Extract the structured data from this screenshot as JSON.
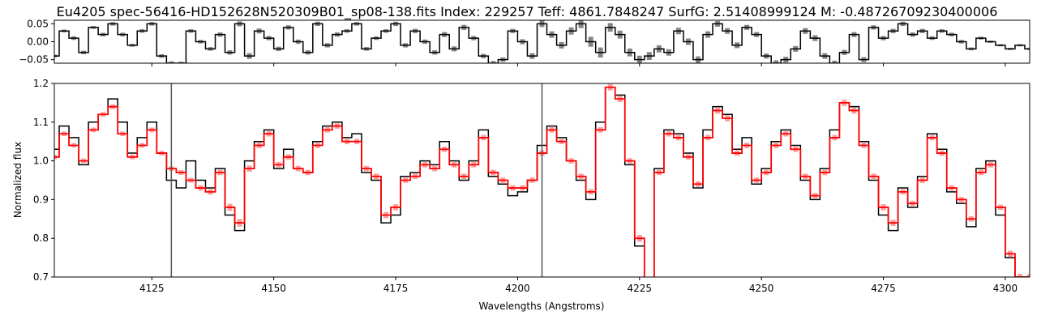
{
  "chart_data": [
    {
      "type": "line",
      "title": "Eu4205 spec-56416-HD152628N520309B01_sp08-138.fits Index: 229257 Teff: 4861.7848247 SurfG: 2.51408999124 M: -0.48726709230400006",
      "xlim": [
        4105,
        4305
      ],
      "ylim": [
        -0.06,
        0.06
      ],
      "yticks": [
        "0.05",
        "0.00",
        "−0.05"
      ],
      "yticks_values": [
        0.05,
        0.0,
        -0.05
      ],
      "xlabel": "",
      "ylabel": "",
      "grid": false,
      "series": [
        {
          "color": "#000000",
          "x": [
            4105,
            4107,
            4109,
            4111,
            4113,
            4115,
            4117,
            4119,
            4121,
            4123,
            4125,
            4127,
            4129,
            4131,
            4133,
            4135,
            4137,
            4139,
            4141,
            4143,
            4145,
            4147,
            4149,
            4151,
            4153,
            4155,
            4157,
            4159,
            4161,
            4163,
            4165,
            4167,
            4169,
            4171,
            4173,
            4175,
            4177,
            4179,
            4181,
            4183,
            4185,
            4187,
            4189,
            4191,
            4193,
            4195,
            4197,
            4199,
            4201,
            4203,
            4205,
            4207,
            4209,
            4211,
            4213,
            4215,
            4217,
            4219,
            4221,
            4223,
            4225,
            4227,
            4229,
            4231,
            4233,
            4235,
            4237,
            4239,
            4241,
            4243,
            4245,
            4247,
            4249,
            4251,
            4253,
            4255,
            4257,
            4259,
            4261,
            4263,
            4265,
            4267,
            4269,
            4271,
            4273,
            4275,
            4277,
            4279,
            4281,
            4283,
            4285,
            4287,
            4289,
            4291,
            4293,
            4295,
            4297,
            4299,
            4301,
            4303,
            4305
          ],
          "y": [
            -0.04,
            0.03,
            0.01,
            -0.03,
            0.04,
            0.02,
            0.05,
            0.02,
            -0.01,
            0.03,
            0.05,
            -0.04,
            -0.06,
            -0.06,
            0.03,
            0.0,
            -0.02,
            0.02,
            -0.03,
            0.05,
            -0.04,
            0.03,
            0.01,
            -0.02,
            0.04,
            0.0,
            -0.03,
            0.05,
            -0.01,
            0.02,
            0.03,
            0.05,
            -0.02,
            0.01,
            0.03,
            0.05,
            -0.01,
            0.03,
            0.0,
            -0.03,
            0.02,
            -0.02,
            0.04,
            0.01,
            -0.04,
            -0.06,
            -0.05,
            0.03,
            0.0,
            -0.04,
            0.05,
            0.02,
            -0.01,
            0.03,
            0.05,
            0.0,
            -0.03,
            0.04,
            0.02,
            -0.03,
            -0.05,
            -0.04,
            -0.02,
            -0.03,
            0.03,
            0.0,
            -0.05,
            0.02,
            0.05,
            0.03,
            -0.01,
            0.04,
            0.02,
            -0.04,
            -0.06,
            -0.05,
            -0.02,
            0.03,
            0.01,
            -0.04,
            -0.06,
            -0.03,
            0.02,
            -0.05,
            0.04,
            0.01,
            0.03,
            0.05,
            0.02,
            0.03,
            0.01,
            0.03,
            0.02,
            0.0,
            -0.02,
            0.01,
            0.0,
            -0.01,
            -0.02,
            -0.01,
            -0.02
          ],
          "errors": [
            0.004,
            0.004,
            0.005,
            0.005,
            0.004,
            0.005,
            0.005,
            0.005,
            0.004,
            0.005,
            0.005,
            0.005,
            0.005,
            0.004,
            0.005,
            0.005,
            0.005,
            0.006,
            0.006,
            0.007,
            0.008,
            0.007,
            0.006,
            0.006,
            0.006,
            0.006,
            0.006,
            0.006,
            0.006,
            0.006,
            0.005,
            0.005,
            0.005,
            0.005,
            0.005,
            0.006,
            0.006,
            0.006,
            0.006,
            0.006,
            0.007,
            0.007,
            0.007,
            0.006,
            0.006,
            0.006,
            0.006,
            0.006,
            0.007,
            0.008,
            0.009,
            0.009,
            0.009,
            0.01,
            0.012,
            0.014,
            0.014,
            0.012,
            0.011,
            0.011,
            0.011,
            0.011,
            0.01,
            0.009,
            0.009,
            0.009,
            0.009,
            0.009,
            0.008,
            0.008,
            0.008,
            0.007,
            0.007,
            0.007,
            0.008,
            0.008,
            0.008,
            0.008,
            0.008,
            0.008,
            0.007,
            0.007,
            0.007,
            0.007,
            0.006,
            0.006,
            0.006,
            0.006,
            0.006,
            0.006,
            0.005,
            0.005,
            0.005,
            0.005,
            0.004,
            0.004,
            0.003,
            0.003,
            0.003,
            0.003,
            0.003
          ]
        }
      ]
    },
    {
      "type": "line",
      "title": "",
      "xlabel": "Wavelengths (Angstroms)",
      "ylabel": "Normalized flux",
      "xlim": [
        4105,
        4305
      ],
      "ylim": [
        0.7,
        1.2
      ],
      "xticks": [
        "4125",
        "4150",
        "4175",
        "4200",
        "4225",
        "4250",
        "4275",
        "4300"
      ],
      "xticks_values": [
        4125,
        4150,
        4175,
        4200,
        4225,
        4250,
        4275,
        4300
      ],
      "yticks": [
        "0.7",
        "0.8",
        "0.9",
        "1.0",
        "1.1",
        "1.2"
      ],
      "yticks_values": [
        0.7,
        0.8,
        0.9,
        1.0,
        1.1,
        1.2
      ],
      "vlines": [
        4129,
        4205
      ],
      "grid": false,
      "x": [
        4105,
        4107,
        4109,
        4111,
        4113,
        4115,
        4117,
        4119,
        4121,
        4123,
        4125,
        4127,
        4129,
        4131,
        4133,
        4135,
        4137,
        4139,
        4141,
        4143,
        4145,
        4147,
        4149,
        4151,
        4153,
        4155,
        4157,
        4159,
        4161,
        4163,
        4165,
        4167,
        4169,
        4171,
        4173,
        4175,
        4177,
        4179,
        4181,
        4183,
        4185,
        4187,
        4189,
        4191,
        4193,
        4195,
        4197,
        4199,
        4201,
        4203,
        4205,
        4207,
        4209,
        4211,
        4213,
        4215,
        4217,
        4219,
        4221,
        4223,
        4225,
        4227,
        4229,
        4231,
        4233,
        4235,
        4237,
        4239,
        4241,
        4243,
        4245,
        4247,
        4249,
        4251,
        4253,
        4255,
        4257,
        4259,
        4261,
        4263,
        4265,
        4267,
        4269,
        4271,
        4273,
        4275,
        4277,
        4279,
        4281,
        4283,
        4285,
        4287,
        4289,
        4291,
        4293,
        4295,
        4297,
        4299,
        4301,
        4303,
        4305
      ],
      "series": [
        {
          "color": "#000000",
          "y": [
            1.03,
            1.09,
            1.06,
            0.99,
            1.1,
            1.12,
            1.16,
            1.1,
            1.02,
            1.06,
            1.1,
            1.02,
            0.95,
            0.93,
            1.0,
            0.95,
            0.93,
            0.98,
            0.86,
            0.82,
            1.0,
            1.05,
            1.08,
            0.98,
            1.03,
            0.98,
            0.97,
            1.05,
            1.09,
            1.1,
            1.06,
            1.07,
            0.97,
            0.95,
            0.84,
            0.86,
            0.96,
            0.97,
            1.0,
            0.99,
            1.05,
            1.0,
            0.95,
            1.0,
            1.08,
            0.96,
            0.94,
            0.91,
            0.92,
            0.95,
            1.04,
            1.09,
            1.06,
            1.0,
            0.95,
            0.9,
            1.1,
            1.19,
            1.17,
            0.99,
            0.78,
            0.65,
            0.98,
            1.08,
            1.07,
            1.02,
            0.93,
            1.08,
            1.14,
            1.12,
            1.03,
            1.06,
            0.94,
            0.98,
            1.05,
            1.08,
            1.04,
            0.95,
            0.9,
            0.98,
            1.08,
            1.15,
            1.14,
            1.05,
            0.95,
            0.86,
            0.82,
            0.93,
            0.88,
            0.96,
            1.07,
            1.03,
            0.92,
            0.89,
            0.83,
            0.98,
            1.0,
            0.86,
            0.75,
            0.7,
            0.7
          ]
        },
        {
          "color": "#ff0000",
          "y": [
            1.01,
            1.07,
            1.04,
            1.0,
            1.08,
            1.12,
            1.14,
            1.07,
            1.01,
            1.04,
            1.08,
            1.02,
            0.98,
            0.97,
            0.95,
            0.93,
            0.92,
            0.97,
            0.88,
            0.84,
            0.98,
            1.04,
            1.07,
            0.99,
            1.01,
            0.98,
            0.97,
            1.04,
            1.08,
            1.09,
            1.05,
            1.05,
            0.98,
            0.96,
            0.86,
            0.88,
            0.95,
            0.96,
            0.99,
            0.98,
            1.03,
            0.99,
            0.96,
            0.99,
            1.06,
            0.97,
            0.95,
            0.93,
            0.93,
            0.95,
            1.02,
            1.08,
            1.05,
            1.0,
            0.96,
            0.92,
            1.08,
            1.19,
            1.16,
            1.0,
            0.8,
            0.67,
            0.97,
            1.07,
            1.06,
            1.01,
            0.94,
            1.06,
            1.13,
            1.11,
            1.02,
            1.04,
            0.95,
            0.97,
            1.04,
            1.07,
            1.03,
            0.96,
            0.91,
            0.97,
            1.06,
            1.15,
            1.13,
            1.04,
            0.96,
            0.88,
            0.84,
            0.92,
            0.89,
            0.95,
            1.06,
            1.02,
            0.93,
            0.9,
            0.85,
            0.97,
            0.99,
            0.88,
            0.76,
            0.7,
            0.7
          ],
          "errors": [
            0.006,
            0.006,
            0.006,
            0.006,
            0.006,
            0.006,
            0.006,
            0.006,
            0.006,
            0.006,
            0.006,
            0.006,
            0.006,
            0.006,
            0.006,
            0.007,
            0.007,
            0.007,
            0.009,
            0.01,
            0.008,
            0.007,
            0.007,
            0.007,
            0.007,
            0.007,
            0.007,
            0.007,
            0.007,
            0.007,
            0.007,
            0.007,
            0.007,
            0.007,
            0.008,
            0.008,
            0.007,
            0.007,
            0.007,
            0.007,
            0.007,
            0.007,
            0.007,
            0.007,
            0.007,
            0.007,
            0.007,
            0.007,
            0.007,
            0.007,
            0.007,
            0.007,
            0.007,
            0.007,
            0.007,
            0.007,
            0.007,
            0.008,
            0.008,
            0.007,
            0.009,
            0.01,
            0.007,
            0.007,
            0.007,
            0.007,
            0.007,
            0.007,
            0.008,
            0.008,
            0.007,
            0.007,
            0.007,
            0.007,
            0.007,
            0.007,
            0.007,
            0.007,
            0.007,
            0.007,
            0.007,
            0.008,
            0.008,
            0.007,
            0.007,
            0.008,
            0.008,
            0.007,
            0.007,
            0.007,
            0.007,
            0.007,
            0.007,
            0.007,
            0.007,
            0.007,
            0.007,
            0.007,
            0.008,
            0.008,
            0.008
          ]
        }
      ]
    }
  ]
}
